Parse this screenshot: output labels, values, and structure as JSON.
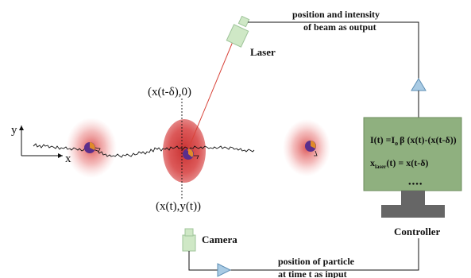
{
  "labels": {
    "y_axis": "y",
    "x_axis": "x",
    "delayed_position": "(x(t-δ),0)",
    "current_position": "(x(t),y(t))",
    "laser": "Laser",
    "camera": "Camera",
    "controller": "Controller",
    "output_line1": "position and  intensity",
    "output_line2": "of beam as output",
    "input_line1": "position of particle",
    "input_line2": "at time t as input"
  },
  "controller_screen": {
    "intensity_prefix": "I(t) =I",
    "intensity_sub": "o",
    "intensity_suffix": "β (x(t)-(x(t-δ))",
    "xlaser_prefix": "x",
    "xlaser_sub": "laser",
    "xlaser_suffix": "(t) = x(t-δ)",
    "dots": "●●●●"
  },
  "colors": {
    "screen": "#8fb07f",
    "monitor_stand": "#666666",
    "device_green": "#cfe8c6",
    "arrow_fill": "#a9cbe4",
    "laser_beam": "#d8443a",
    "trap_red": "#d63a3a",
    "particle_purple": "#5a2e8c",
    "particle_orange": "#e08a2a"
  }
}
